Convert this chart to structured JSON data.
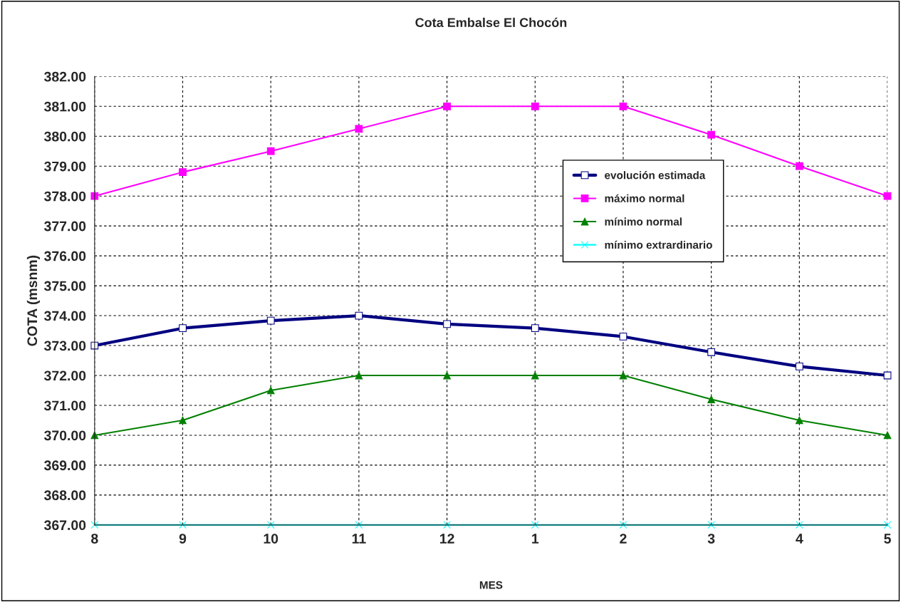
{
  "chart_data": {
    "type": "line",
    "title": "Cota Embalse El Chocón",
    "xlabel": "MES",
    "ylabel": "COTA (msnm)",
    "categories": [
      "8",
      "9",
      "10",
      "11",
      "12",
      "1",
      "2",
      "3",
      "4",
      "5"
    ],
    "series": [
      {
        "name": "evolución estimada",
        "color": "#000080",
        "marker": "square",
        "values": [
          373.0,
          373.58,
          373.83,
          374.0,
          373.72,
          373.58,
          373.3,
          372.78,
          372.3,
          372.0
        ]
      },
      {
        "name": "máximo normal",
        "color": "#ff00ff",
        "marker": "square",
        "values": [
          378.0,
          378.8,
          379.5,
          380.25,
          381.0,
          381.0,
          381.0,
          380.05,
          379.0,
          378.0
        ]
      },
      {
        "name": "mínimo normal",
        "color": "#008000",
        "marker": "triangle",
        "values": [
          370.0,
          370.5,
          371.5,
          372.0,
          372.0,
          372.0,
          372.0,
          371.2,
          370.5,
          370.0
        ]
      },
      {
        "name": "mínimo extrardinario",
        "color": "#00ffff",
        "marker": "cross",
        "values": [
          367.0,
          367.0,
          367.0,
          367.0,
          367.0,
          367.0,
          367.0,
          367.0,
          367.0,
          367.0
        ]
      }
    ],
    "ylim": [
      367,
      382
    ],
    "yticks": [
      {
        "value": 367,
        "label": "367.00"
      },
      {
        "value": 368,
        "label": "368.00"
      },
      {
        "value": 369,
        "label": "369.00"
      },
      {
        "value": 370,
        "label": "370.00"
      },
      {
        "value": 371,
        "label": "371.00"
      },
      {
        "value": 372,
        "label": "372.00"
      },
      {
        "value": 373,
        "label": "373.00"
      },
      {
        "value": 374,
        "label": "374.00"
      },
      {
        "value": 375,
        "label": "375.00"
      },
      {
        "value": 376,
        "label": "376.00"
      },
      {
        "value": 377,
        "label": "377.00"
      },
      {
        "value": 378,
        "label": "378.00"
      },
      {
        "value": 379,
        "label": "379.00"
      },
      {
        "value": 380,
        "label": "380.00"
      },
      {
        "value": 381,
        "label": "381.00"
      },
      {
        "value": 382,
        "label": "382.00"
      }
    ],
    "grid": true,
    "legend": "right",
    "line_style": "solid"
  }
}
